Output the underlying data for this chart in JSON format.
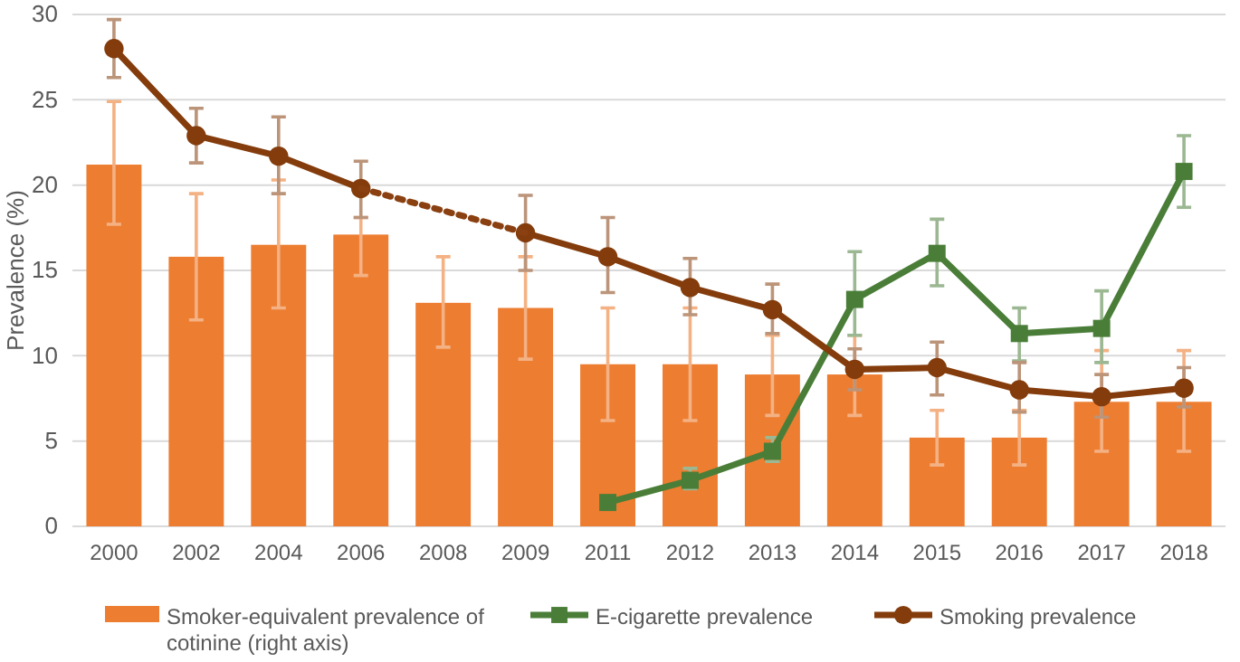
{
  "chart_data": {
    "type": "bar",
    "ylabel": "Prevalence (%)",
    "categories": [
      "2000",
      "2002",
      "2004",
      "2006",
      "2008",
      "2009",
      "2011",
      "2012",
      "2013",
      "2014",
      "2015",
      "2016",
      "2017",
      "2018"
    ],
    "ylim": [
      0,
      30
    ],
    "yticks": [
      0,
      5,
      10,
      15,
      20,
      25,
      30
    ],
    "grid": "y",
    "legend": "bottom",
    "series": [
      {
        "name": "Smoker-equivalent prevalence of cotinine (right axis)",
        "color": "#ed7d31",
        "values": [
          21.2,
          15.8,
          16.5,
          17.1,
          13.1,
          12.8,
          9.5,
          9.5,
          8.9,
          8.9,
          5.2,
          5.2,
          7.3,
          7.3
        ],
        "errors": [
          [
            17.7,
            24.9
          ],
          [
            12.1,
            19.5
          ],
          [
            12.8,
            20.3
          ],
          [
            14.7,
            18.1
          ],
          [
            10.5,
            15.8
          ],
          [
            9.8,
            15.8
          ],
          [
            6.2,
            12.8
          ],
          [
            6.2,
            12.8
          ],
          [
            6.5,
            11.2
          ],
          [
            6.5,
            11.2
          ],
          [
            3.6,
            6.8
          ],
          [
            3.6,
            6.8
          ],
          [
            4.4,
            10.3
          ],
          [
            4.4,
            10.3
          ]
        ]
      },
      {
        "name": "E-cigarette prevalence",
        "type": "line",
        "color": "#4a7e38",
        "marker": "square",
        "line_style": "solid",
        "values": [
          null,
          null,
          null,
          null,
          null,
          null,
          1.4,
          2.7,
          4.4,
          13.3,
          16.0,
          11.3,
          11.6,
          20.8
        ],
        "errors": [
          null,
          null,
          null,
          null,
          null,
          null,
          null,
          [
            2.2,
            3.4
          ],
          [
            3.8,
            5.2
          ],
          [
            11.2,
            16.1
          ],
          [
            14.1,
            18.0
          ],
          [
            9.7,
            12.8
          ],
          [
            9.6,
            13.8
          ],
          [
            18.7,
            22.9
          ]
        ]
      },
      {
        "name": "Smoking prevalence",
        "type": "line",
        "color": "#843c0c",
        "marker": "circle",
        "line_style": "solid",
        "values": [
          28.0,
          22.9,
          21.7,
          19.8,
          null,
          17.2,
          15.8,
          14.0,
          12.7,
          9.2,
          9.3,
          8.0,
          7.6,
          8.1
        ],
        "errors": [
          [
            26.3,
            29.7
          ],
          [
            21.3,
            24.5
          ],
          [
            19.5,
            24.0
          ],
          [
            18.1,
            21.4
          ],
          null,
          [
            15.0,
            19.4
          ],
          [
            13.7,
            18.1
          ],
          [
            12.4,
            15.7
          ],
          [
            11.3,
            14.2
          ],
          [
            8.0,
            10.4
          ],
          [
            7.7,
            10.8
          ],
          [
            6.7,
            9.6
          ],
          [
            6.4,
            8.9
          ],
          [
            7.0,
            9.3
          ]
        ]
      },
      {
        "type": "line",
        "color": "#8a4010",
        "marker": "none",
        "line_style": "dotted",
        "values": [
          null,
          null,
          null,
          19.8,
          18.5,
          17.2,
          null,
          null,
          null,
          null,
          null,
          null,
          null,
          null
        ]
      }
    ]
  }
}
